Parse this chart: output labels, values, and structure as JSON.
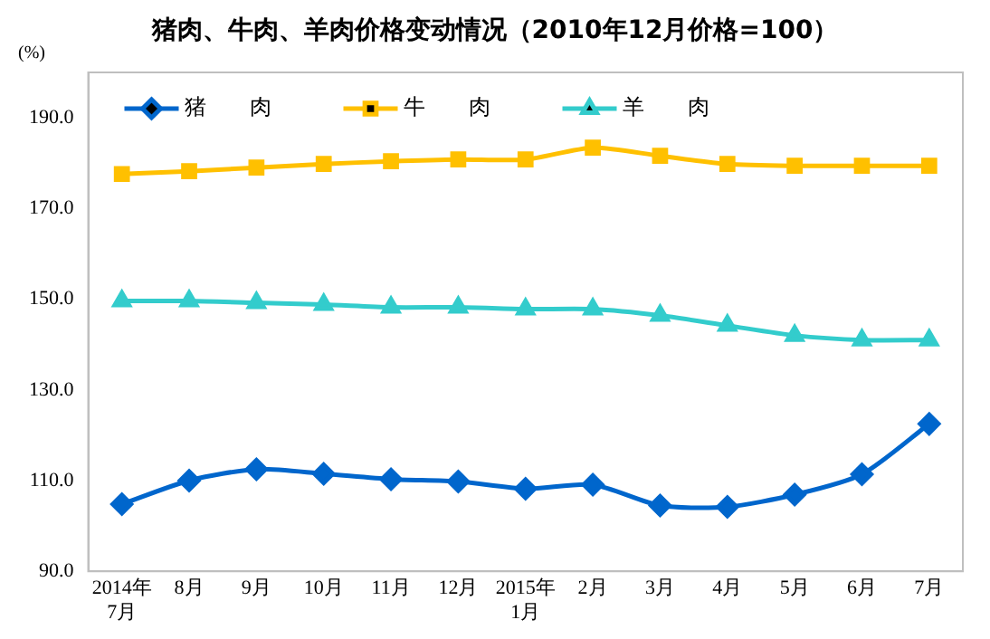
{
  "chart_data": {
    "type": "line",
    "title": "猪肉、牛肉、羊肉价格变动情况（2010年12月价格=100）",
    "ylabel": "(%)",
    "categories": [
      "2014年\n7月",
      "8月",
      "9月",
      "10月",
      "11月",
      "12月",
      "2015年\n1月",
      "2月",
      "3月",
      "4月",
      "5月",
      "6月",
      "7月"
    ],
    "series": [
      {
        "name": "猪　　肉",
        "color": "#0066cc",
        "marker": "diamond",
        "values": [
          104.8,
          110.0,
          112.5,
          111.5,
          110.3,
          109.8,
          108.2,
          109.1,
          104.5,
          104.2,
          106.9,
          111.4,
          122.5
        ]
      },
      {
        "name": "牛　　肉",
        "color": "#ffc000",
        "marker": "square",
        "values": [
          177.6,
          178.2,
          179.0,
          179.8,
          180.4,
          180.8,
          180.8,
          183.4,
          181.6,
          179.8,
          179.4,
          179.4,
          179.4
        ]
      },
      {
        "name": "羊　　肉",
        "color": "#33cccc",
        "marker": "triangle",
        "values": [
          149.6,
          149.6,
          149.2,
          148.8,
          148.2,
          148.2,
          147.8,
          147.8,
          146.4,
          144.2,
          142.0,
          141.0,
          141.0
        ]
      }
    ],
    "ylim": [
      90,
      200
    ],
    "yticks": [
      {
        "value": 90,
        "label": "90.0"
      },
      {
        "value": 110,
        "label": "110.0"
      },
      {
        "value": 130,
        "label": "130.0"
      },
      {
        "value": 150,
        "label": "150.0"
      },
      {
        "value": 170,
        "label": "170.0"
      },
      {
        "value": 190,
        "label": "190.0"
      },
      {
        "value": 200,
        "label": null
      }
    ],
    "grid": false,
    "legend": "top left",
    "line_style": "solid"
  }
}
